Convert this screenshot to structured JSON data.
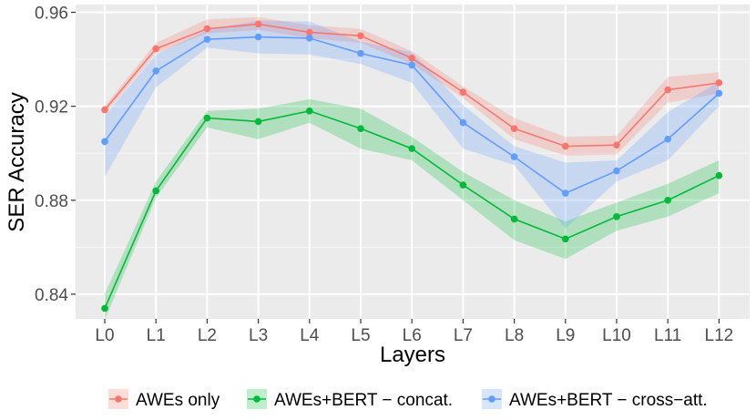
{
  "chart_data": {
    "type": "line",
    "title": "",
    "xlabel": "Layers",
    "ylabel": "SER Accuracy",
    "categories": [
      "L0",
      "L1",
      "L2",
      "L3",
      "L4",
      "L5",
      "L6",
      "L7",
      "L8",
      "L9",
      "L10",
      "L11",
      "L12"
    ],
    "ylim": [
      0.8295,
      0.9633
    ],
    "yticks": [
      0.84,
      0.88,
      0.92,
      0.96
    ],
    "ytick_labels": [
      "0.84",
      "0.88",
      "0.92",
      "0.96"
    ],
    "grid": true,
    "legend_position": "bottom",
    "series": [
      {
        "name": "AWEs only",
        "color": "#F8766D",
        "values": [
          0.9185,
          0.9445,
          0.953,
          0.955,
          0.9515,
          0.95,
          0.9405,
          0.926,
          0.9105,
          0.903,
          0.9035,
          0.927,
          0.93
        ],
        "lower": [
          0.9165,
          0.9425,
          0.951,
          0.9525,
          0.949,
          0.947,
          0.938,
          0.9235,
          0.906,
          0.899,
          0.8995,
          0.9215,
          0.9255
        ],
        "upper": [
          0.92,
          0.947,
          0.957,
          0.958,
          0.9545,
          0.953,
          0.9435,
          0.9285,
          0.915,
          0.907,
          0.9075,
          0.9325,
          0.9345
        ]
      },
      {
        "name": "AWEs+BERT − concat.",
        "color": "#00BA38",
        "values": [
          0.834,
          0.884,
          0.915,
          0.9135,
          0.918,
          0.9105,
          0.902,
          0.8865,
          0.872,
          0.8635,
          0.873,
          0.88,
          0.8905
        ],
        "lower": [
          0.829,
          0.881,
          0.911,
          0.906,
          0.913,
          0.902,
          0.897,
          0.88,
          0.863,
          0.855,
          0.867,
          0.873,
          0.883
        ],
        "upper": [
          0.84,
          0.888,
          0.918,
          0.919,
          0.923,
          0.919,
          0.907,
          0.892,
          0.88,
          0.871,
          0.879,
          0.887,
          0.897
        ]
      },
      {
        "name": "AWEs+BERT − cross−att.",
        "color": "#619CFF",
        "values": [
          0.905,
          0.935,
          0.9485,
          0.9495,
          0.949,
          0.9425,
          0.9375,
          0.913,
          0.8985,
          0.883,
          0.8925,
          0.906,
          0.9255
        ],
        "lower": [
          0.89,
          0.928,
          0.945,
          0.9425,
          0.942,
          0.938,
          0.93,
          0.902,
          0.895,
          0.868,
          0.888,
          0.897,
          0.92
        ],
        "upper": [
          0.916,
          0.942,
          0.9525,
          0.9565,
          0.956,
          0.9475,
          0.943,
          0.9205,
          0.903,
          0.896,
          0.897,
          0.9175,
          0.9305
        ]
      }
    ]
  }
}
